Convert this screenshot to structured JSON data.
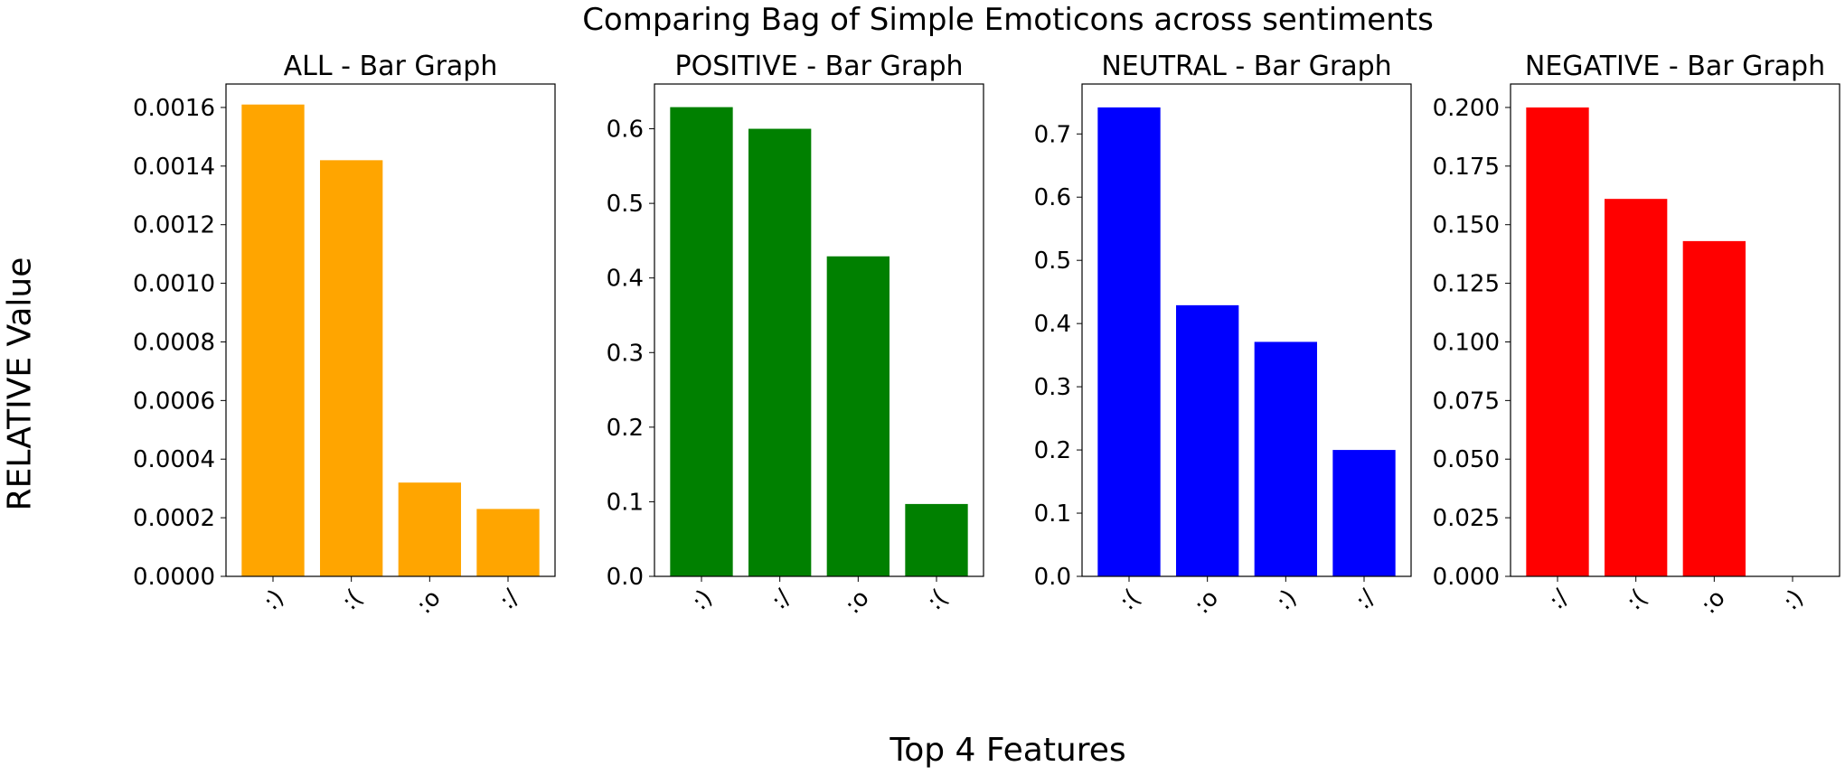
{
  "figure": {
    "suptitle": "Comparing Bag of Simple Emoticons across sentiments",
    "ylabel": "RELATIVE Value",
    "xlabel": "Top 4 Features"
  },
  "chart_data": [
    {
      "type": "bar",
      "title": "ALL - Bar Graph",
      "color": "#ffa500",
      "categories": [
        ":)",
        ":(",
        ":o",
        ":/"
      ],
      "values": [
        0.00161,
        0.00142,
        0.00032,
        0.00023
      ],
      "ylim": [
        0,
        0.00168
      ],
      "yticks": [
        0,
        0.0002,
        0.0004,
        0.0006,
        0.0008,
        0.001,
        0.0012,
        0.0014,
        0.0016
      ],
      "ytick_labels": [
        "0.0000",
        "0.0002",
        "0.0004",
        "0.0006",
        "0.0008",
        "0.0010",
        "0.0012",
        "0.0014",
        "0.0016"
      ]
    },
    {
      "type": "bar",
      "title": "POSITIVE - Bar Graph",
      "color": "#008000",
      "categories": [
        ":)",
        ":/",
        ":o",
        ":("
      ],
      "values": [
        0.629,
        0.6,
        0.429,
        0.097
      ],
      "ylim": [
        0,
        0.66
      ],
      "yticks": [
        0,
        0.1,
        0.2,
        0.3,
        0.4,
        0.5,
        0.6
      ],
      "ytick_labels": [
        "0.0",
        "0.1",
        "0.2",
        "0.3",
        "0.4",
        "0.5",
        "0.6"
      ]
    },
    {
      "type": "bar",
      "title": "NEUTRAL - Bar Graph",
      "color": "#0000ff",
      "categories": [
        ":(",
        ":o",
        ":)",
        ":/"
      ],
      "values": [
        0.742,
        0.429,
        0.371,
        0.2
      ],
      "ylim": [
        0,
        0.779
      ],
      "yticks": [
        0,
        0.1,
        0.2,
        0.3,
        0.4,
        0.5,
        0.6,
        0.7
      ],
      "ytick_labels": [
        "0.0",
        "0.1",
        "0.2",
        "0.3",
        "0.4",
        "0.5",
        "0.6",
        "0.7"
      ]
    },
    {
      "type": "bar",
      "title": "NEGATIVE - Bar Graph",
      "color": "#ff0000",
      "categories": [
        ":/",
        ":(",
        ":o",
        ":)"
      ],
      "values": [
        0.2,
        0.161,
        0.143,
        0.0
      ],
      "ylim": [
        0,
        0.21
      ],
      "yticks": [
        0,
        0.025,
        0.05,
        0.075,
        0.1,
        0.125,
        0.15,
        0.175,
        0.2
      ],
      "ytick_labels": [
        "0.000",
        "0.025",
        "0.050",
        "0.075",
        "0.100",
        "0.125",
        "0.150",
        "0.175",
        "0.200"
      ]
    }
  ]
}
